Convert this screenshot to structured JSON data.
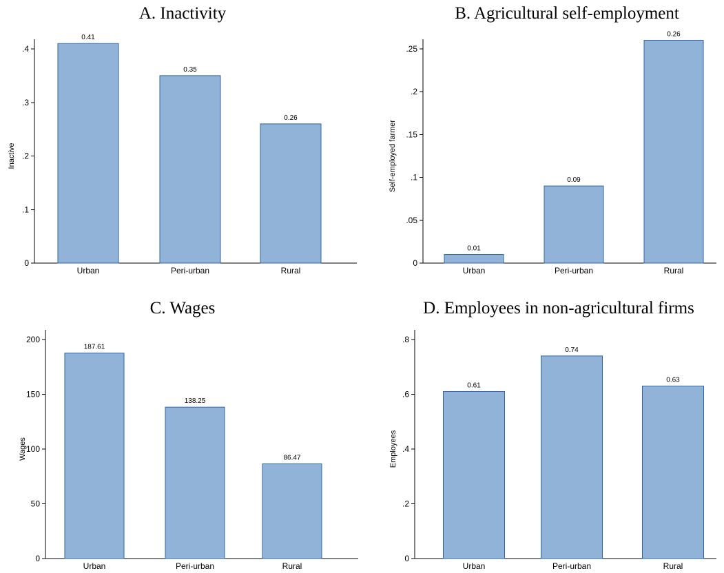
{
  "chart_data": [
    {
      "type": "bar",
      "title": "A. Inactivity",
      "ylabel": "Inactive",
      "xlabel": "",
      "categories": [
        "Urban",
        "Peri-urban",
        "Rural"
      ],
      "values": [
        0.41,
        0.35,
        0.26
      ],
      "data_labels": [
        "0.41",
        "0.35",
        "0.26"
      ],
      "yticks": [
        0,
        0.1,
        0.2,
        0.3,
        0.4
      ],
      "ytick_labels": [
        "0",
        ".1",
        ".2",
        ".3",
        ".4"
      ],
      "ylim": [
        0,
        0.4
      ],
      "grid": false,
      "bar_color": "#91b3d7",
      "edge_color": "#2f64a8"
    },
    {
      "type": "bar",
      "title": "B. Agricultural self-employment",
      "ylabel": "Self-employed farmer",
      "xlabel": "",
      "categories": [
        "Urban",
        "Peri-urban",
        "Rural"
      ],
      "values": [
        0.01,
        0.09,
        0.26
      ],
      "data_labels": [
        "0.01",
        "0.09",
        "0.26"
      ],
      "yticks": [
        0,
        0.05,
        0.1,
        0.15,
        0.2,
        0.25
      ],
      "ytick_labels": [
        "0",
        ".05",
        ".1",
        ".15",
        ".2",
        ".25"
      ],
      "ylim": [
        0,
        0.25
      ],
      "grid": false,
      "bar_color": "#91b3d7",
      "edge_color": "#2f64a8"
    },
    {
      "type": "bar",
      "title": "C. Wages",
      "ylabel": "Wages",
      "xlabel": "",
      "categories": [
        "Urban",
        "Peri-urban",
        "Rural"
      ],
      "values": [
        187.61,
        138.25,
        86.47
      ],
      "data_labels": [
        "187.61",
        "138.25",
        "86.47"
      ],
      "yticks": [
        0,
        50,
        100,
        150,
        200
      ],
      "ytick_labels": [
        "0",
        "50",
        "100",
        "150",
        "200"
      ],
      "ylim": [
        0,
        200
      ],
      "grid": false,
      "bar_color": "#91b3d7",
      "edge_color": "#2f64a8"
    },
    {
      "type": "bar",
      "title": "D. Employees in non-agricultural firms",
      "ylabel": "Employees",
      "xlabel": "",
      "categories": [
        "Urban",
        "Peri-urban",
        "Rural"
      ],
      "values": [
        0.61,
        0.74,
        0.63
      ],
      "data_labels": [
        "0.61",
        "0.74",
        "0.63"
      ],
      "yticks": [
        0,
        0.2,
        0.4,
        0.6,
        0.8
      ],
      "ytick_labels": [
        "0",
        ".2",
        ".4",
        ".6",
        ".8"
      ],
      "ylim": [
        0,
        0.8
      ],
      "grid": false,
      "bar_color": "#91b3d7",
      "edge_color": "#2f64a8"
    }
  ]
}
